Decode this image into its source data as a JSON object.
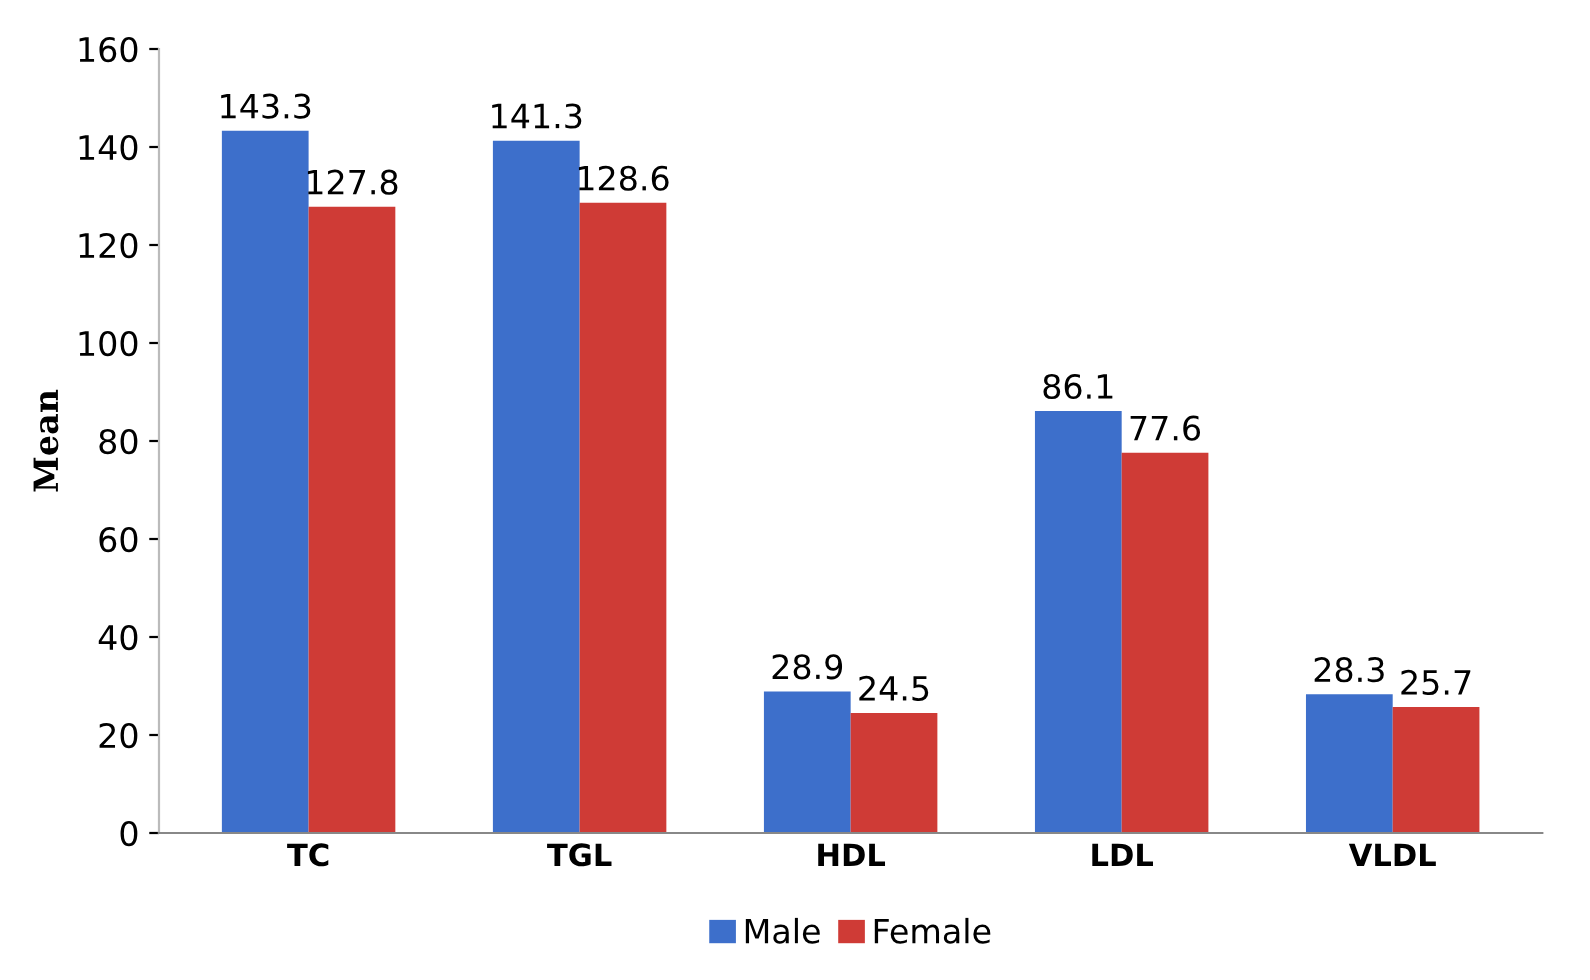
{
  "chart_data": {
    "type": "bar",
    "ylabel": "Mean",
    "categories": [
      "TC",
      "TGL",
      "HDL",
      "LDL",
      "VLDL"
    ],
    "series": [
      {
        "name": "Male",
        "color": "#3d6fcb",
        "values": [
          143.3,
          141.3,
          28.9,
          86.1,
          28.3
        ]
      },
      {
        "name": "Female",
        "color": "#cf3b36",
        "values": [
          127.8,
          128.6,
          24.5,
          77.6,
          25.7
        ]
      }
    ],
    "ylim": [
      0,
      160
    ],
    "yticks": [
      0,
      20,
      40,
      60,
      80,
      100,
      120,
      140,
      160
    ],
    "grid": false,
    "legend": "bottom",
    "data_labels": true
  }
}
